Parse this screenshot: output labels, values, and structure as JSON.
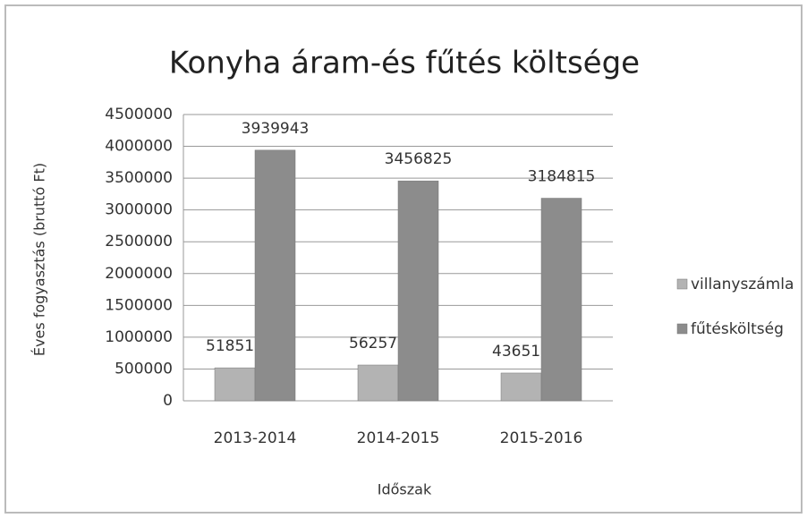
{
  "chart_data": {
    "type": "bar",
    "title": "Konyha  áram-és fűtés költsége",
    "x_label": "Időszak",
    "y_label": "Éves fogyasztás (bruttó Ft)",
    "categories": [
      "2013-2014",
      "2014-2015",
      "2015-2016"
    ],
    "series": [
      {
        "name": "villanyszámla",
        "color": "#b3b3b3",
        "values": [
          518516,
          562578,
          436516
        ]
      },
      {
        "name": "fűtésköltség",
        "color": "#8c8c8c",
        "values": [
          3939943,
          3456825,
          3184815
        ]
      }
    ],
    "ylim": [
      0,
      4500000
    ],
    "yticks": [
      0,
      500000,
      1000000,
      1500000,
      2000000,
      2500000,
      3000000,
      3500000,
      4000000,
      4500000
    ],
    "grid": true,
    "legend": "right"
  }
}
